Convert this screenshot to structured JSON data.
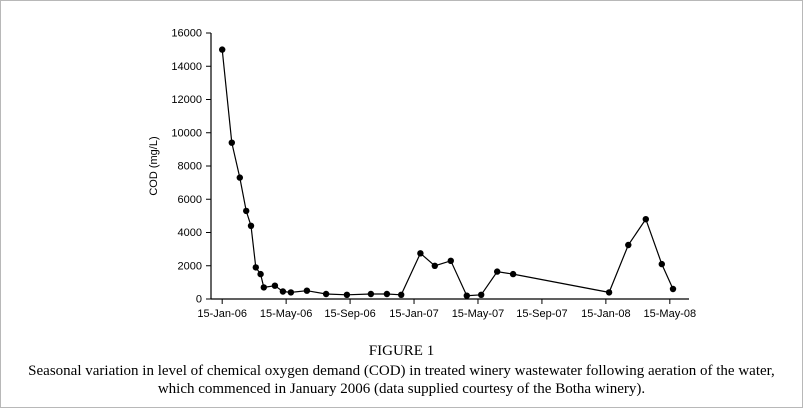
{
  "figure": {
    "title": "FIGURE 1",
    "caption_line1": "Seasonal variation in level of chemical oxygen demand (COD) in treated winery wastewater following aeration of the water,",
    "caption_line2": "which commenced in January 2006 (data supplied courtesy of the Botha winery)."
  },
  "chart_data": {
    "type": "line",
    "title": "",
    "xlabel": "",
    "ylabel": "COD (mg/L)",
    "ylim": [
      0,
      16000
    ],
    "yticks": [
      0,
      2000,
      4000,
      6000,
      8000,
      10000,
      12000,
      14000,
      16000
    ],
    "xlim": [
      -0.7,
      29.2
    ],
    "x_unit": "months-since-15-Jan-06",
    "xticks": [
      0,
      4,
      8,
      12,
      16,
      20,
      24,
      28
    ],
    "xtick_labels": [
      "15-Jan-06",
      "15-May-06",
      "15-Sep-06",
      "15-Jan-07",
      "15-May-07",
      "15-Sep-07",
      "15-Jan-08",
      "15-May-08"
    ],
    "grid": false,
    "legend": false,
    "marker": "filled-circle",
    "line_color": "#000000",
    "marker_color": "#000000",
    "points": [
      [
        0,
        15000
      ],
      [
        0.6,
        9400
      ],
      [
        1.1,
        7300
      ],
      [
        1.5,
        5300
      ],
      [
        1.8,
        4400
      ],
      [
        2.1,
        1900
      ],
      [
        2.4,
        1500
      ],
      [
        2.6,
        700
      ],
      [
        3.3,
        800
      ],
      [
        3.8,
        450
      ],
      [
        4.3,
        400
      ],
      [
        5.3,
        500
      ],
      [
        6.5,
        300
      ],
      [
        7.8,
        250
      ],
      [
        9.3,
        300
      ],
      [
        10.3,
        300
      ],
      [
        11.2,
        250
      ],
      [
        12.4,
        2750
      ],
      [
        13.3,
        2000
      ],
      [
        14.3,
        2300
      ],
      [
        15.3,
        200
      ],
      [
        16.2,
        250
      ],
      [
        17.2,
        1650
      ],
      [
        18.2,
        1500
      ],
      [
        24.2,
        400
      ],
      [
        25.4,
        3250
      ],
      [
        26.5,
        4800
      ],
      [
        27.5,
        2100
      ],
      [
        28.2,
        600
      ]
    ]
  }
}
